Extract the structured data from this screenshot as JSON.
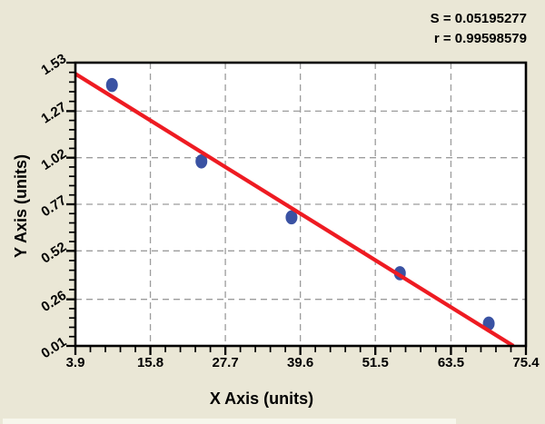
{
  "annotations": {
    "s_label": "S = 0.05195277",
    "r_label": "r = 0.99598579"
  },
  "chart_data": {
    "type": "scatter",
    "title": "",
    "xlabel": "X Axis (units)",
    "ylabel": "Y Axis (units)",
    "xlim": [
      3.9,
      75.4
    ],
    "ylim": [
      0.01,
      1.53
    ],
    "x_ticks": [
      3.9,
      15.8,
      27.7,
      39.6,
      51.5,
      63.5,
      75.4
    ],
    "y_ticks": [
      0.01,
      0.26,
      0.52,
      0.77,
      1.02,
      1.27,
      1.53
    ],
    "x_tick_decimals": 1,
    "y_tick_decimals": 2,
    "minor_ticks_per_interval": 4,
    "grid": {
      "show": true,
      "style": "dashed",
      "at": "interior-major-ticks"
    },
    "legend": {
      "show": false
    },
    "series": [
      {
        "name": "standard-points",
        "type": "scatter",
        "color": "#3a52a3",
        "points": [
          [
            9.7,
            1.41
          ],
          [
            23.9,
            1.0
          ],
          [
            38.2,
            0.7
          ],
          [
            55.4,
            0.4
          ],
          [
            69.5,
            0.13
          ]
        ]
      },
      {
        "name": "regression-line",
        "type": "line",
        "color": "#ee1b22",
        "points": [
          [
            3.9,
            1.47
          ],
          [
            73.4,
            0.01
          ]
        ]
      }
    ],
    "stats": {
      "S": "0.05195277",
      "r": "0.99598579"
    }
  },
  "colors": {
    "background": "#eae7d6",
    "plot_background": "#ffffff",
    "axis": "#000000",
    "grid": "#9c9c9c",
    "text": "#000000",
    "strip": "#f7f6ec"
  }
}
